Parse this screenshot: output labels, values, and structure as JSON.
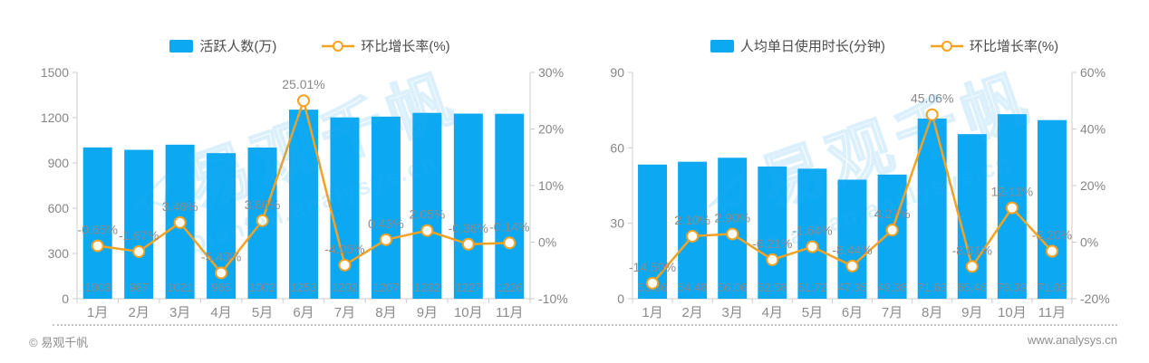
{
  "footer": {
    "left": "© 易观千帆",
    "right": "www.analysys.cn"
  },
  "watermark": {
    "brand": "易观千帆",
    "site": "Qianfan.analysys.cn"
  },
  "colors": {
    "bar": "#0ca9f2",
    "line": "#f5a222",
    "axis": "#cccccc",
    "tick_label": "#868686",
    "bar_label": "#848a90",
    "point_label": "#8a8a8a",
    "legend_text": "#4d4d4d",
    "watermark": "#2fa9ee",
    "marker_fill": "#ffffff"
  },
  "chart_data": [
    {
      "type": "bar",
      "combo": "bar+line",
      "categories": [
        "1月",
        "2月",
        "3月",
        "4月",
        "5月",
        "6月",
        "7月",
        "8月",
        "9月",
        "10月",
        "11月"
      ],
      "series": [
        {
          "name": "活跃人数(万)",
          "type": "bar",
          "axis": "left",
          "values": [
            1003,
            987,
            1021,
            965,
            1002,
            1253,
            1202,
            1207,
            1232,
            1227,
            1226
          ],
          "labels": [
            "1003",
            "987",
            "1021",
            "965",
            "1002",
            "1253",
            "1202",
            "1207",
            "1232",
            "1227",
            "1226"
          ]
        },
        {
          "name": "环比增长率(%)",
          "type": "line",
          "axis": "right",
          "values": [
            -0.65,
            -1.67,
            3.46,
            -5.43,
            3.8,
            25.01,
            -4.05,
            0.43,
            2.05,
            -0.36,
            -0.14
          ],
          "labels": [
            "-0.65%",
            "-1.67%",
            "3.46%",
            "-5.43%",
            "3.80%",
            "25.01%",
            "-4.05%",
            "0.43%",
            "2.05%",
            "-0.36%",
            "-0.14%"
          ]
        }
      ],
      "left_axis": {
        "min": 0,
        "max": 1500,
        "tick_labels": [
          "1500",
          "1200",
          "900",
          "600",
          "300",
          "0"
        ]
      },
      "right_axis": {
        "min": -10,
        "max": 30,
        "tick_labels": [
          "30%",
          "20%",
          "10%",
          "0%",
          "-10%"
        ]
      },
      "grid": false,
      "legend_position": "top"
    },
    {
      "type": "bar",
      "combo": "bar+line",
      "categories": [
        "1月",
        "2月",
        "3月",
        "4月",
        "5月",
        "6月",
        "7月",
        "8月",
        "9月",
        "10月",
        "11月"
      ],
      "series": [
        {
          "name": "人均单日使用时长(分钟)",
          "type": "bar",
          "axis": "left",
          "values": [
            53.36,
            54.48,
            56.06,
            52.58,
            51.72,
            47.35,
            49.38,
            71.63,
            65.46,
            73.39,
            71.05
          ],
          "labels": [
            "53.36",
            "54.48",
            "56.06",
            "52.58",
            "51.72",
            "47.35",
            "49.38",
            "71.63",
            "65.46",
            "73.39",
            "71.05"
          ]
        },
        {
          "name": "环比增长率(%)",
          "type": "line",
          "axis": "right",
          "values": [
            -14.5,
            2.1,
            2.9,
            -6.21,
            -1.64,
            -8.44,
            4.27,
            45.06,
            -8.61,
            12.11,
            -3.2
          ],
          "labels": [
            "-14.50%",
            "2.10%",
            "2.90%",
            "-6.21%",
            "-1.64%",
            "-8.44%",
            "4.27%",
            "45.06%",
            "-8.61%",
            "12.11%",
            "-3.20%"
          ]
        }
      ],
      "left_axis": {
        "min": 0,
        "max": 90,
        "tick_labels": [
          "90",
          "60",
          "30",
          "0"
        ]
      },
      "right_axis": {
        "min": -20,
        "max": 60,
        "tick_labels": [
          "60%",
          "40%",
          "20%",
          "0%",
          "-20%"
        ]
      },
      "grid": false,
      "legend_position": "top"
    }
  ]
}
